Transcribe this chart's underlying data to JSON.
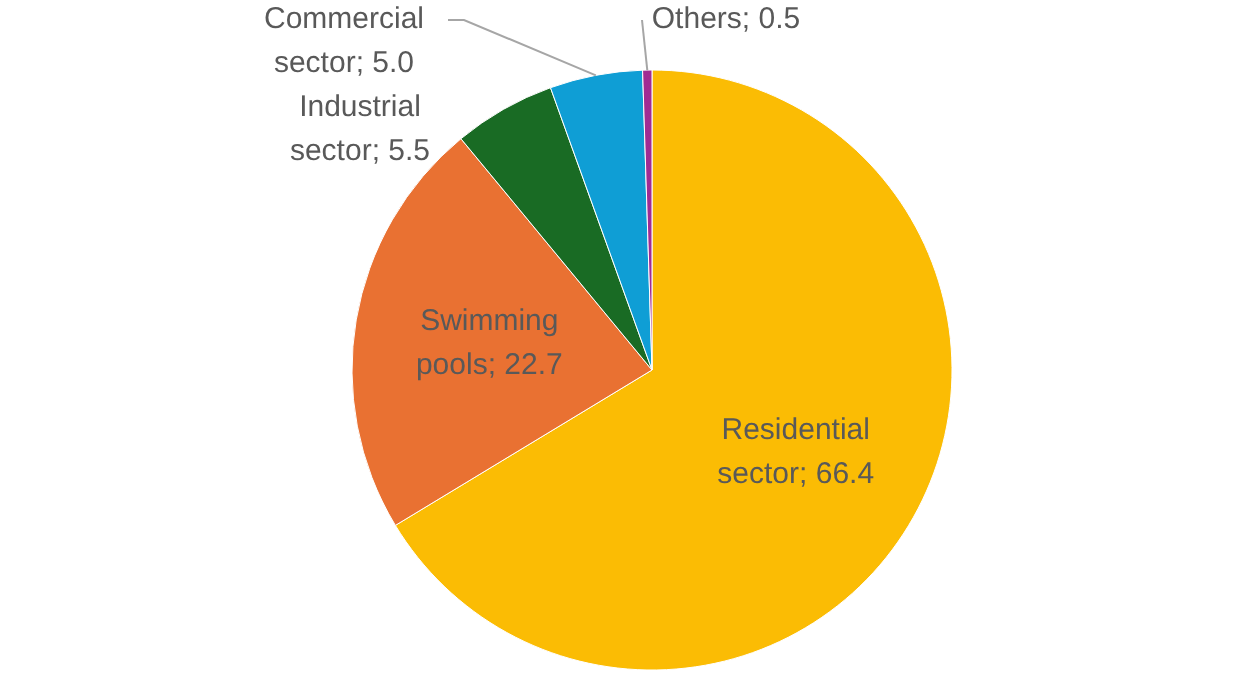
{
  "chart_data": {
    "type": "pie",
    "categories": [
      "Residential sector",
      "Swimming pools",
      "Industrial sector",
      "Commercial sector",
      "Others"
    ],
    "values": [
      66.4,
      22.7,
      5.5,
      5.0,
      0.5
    ],
    "value_labels": [
      "66.4",
      "22.7",
      "5.5",
      "5.0",
      "0.5"
    ],
    "colors": [
      "#fbbc04",
      "#e97132",
      "#196b24",
      "#0f9ed5",
      "#a02b93"
    ]
  }
}
